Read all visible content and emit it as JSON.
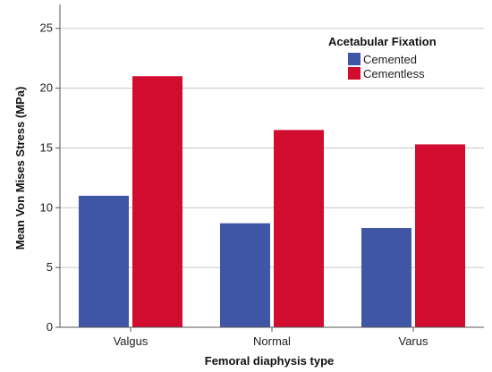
{
  "chart_data": {
    "type": "bar",
    "xlabel": "Femoral diaphysis type",
    "ylabel": "Mean Von Mises Stress (MPa)",
    "categories": [
      "Valgus",
      "Normal",
      "Varus"
    ],
    "ylim": [
      0,
      27
    ],
    "yticks": [
      0,
      5,
      10,
      15,
      20,
      25
    ],
    "grid": true,
    "legend": {
      "title": "Acetabular Fixation",
      "placement": "top-right"
    },
    "series": [
      {
        "name": "Cemented",
        "values": [
          11.0,
          8.7,
          8.3
        ],
        "color": "#3f56a6"
      },
      {
        "name": "Cementless",
        "values": [
          21.0,
          16.5,
          15.3
        ],
        "color": "#d10c2f"
      }
    ]
  }
}
